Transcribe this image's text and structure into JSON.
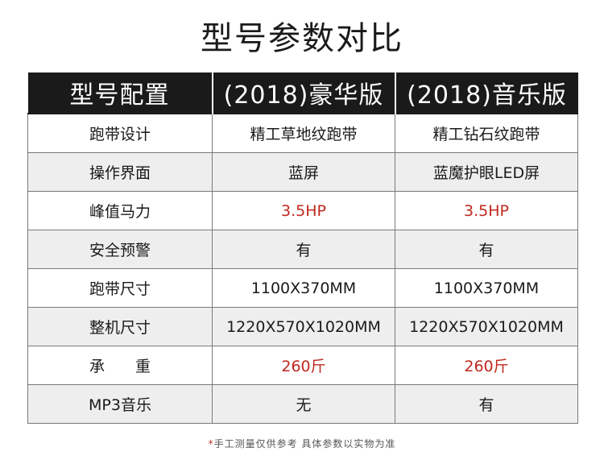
{
  "title": "型号参数对比",
  "colors": {
    "header_bg": "#1a1a1a",
    "header_text": "#ffffff",
    "alt_row_bg": "#eeeeee",
    "highlight_text": "#c0281e",
    "border": "#7a7a7a"
  },
  "table": {
    "headers": [
      "型号配置",
      "(2018)豪华版",
      "(2018)音乐版"
    ],
    "rows": [
      {
        "label": "跑带设计",
        "values": [
          "精工草地纹跑带",
          "精工钻石纹跑带"
        ],
        "highlight": false
      },
      {
        "label": "操作界面",
        "values": [
          "蓝屏",
          "蓝魔护眼LED屏"
        ],
        "highlight": false
      },
      {
        "label": "峰值马力",
        "values": [
          "3.5HP",
          "3.5HP"
        ],
        "highlight": true
      },
      {
        "label": "安全预警",
        "values": [
          "有",
          "有"
        ],
        "highlight": false
      },
      {
        "label": "跑带尺寸",
        "values": [
          "1100X370MM",
          "1100X370MM"
        ],
        "highlight": false
      },
      {
        "label": "整机尺寸",
        "values": [
          "1220X570X1020MM",
          "1220X570X1020MM"
        ],
        "highlight": false
      },
      {
        "label": "承　　重",
        "values": [
          "260斤",
          "260斤"
        ],
        "highlight": true
      },
      {
        "label": "MP3音乐",
        "values": [
          "无",
          "有"
        ],
        "highlight": false
      }
    ]
  },
  "footnote": {
    "asterisk": "*",
    "text": "手工测量仅供参考 具体参数以实物为准"
  }
}
